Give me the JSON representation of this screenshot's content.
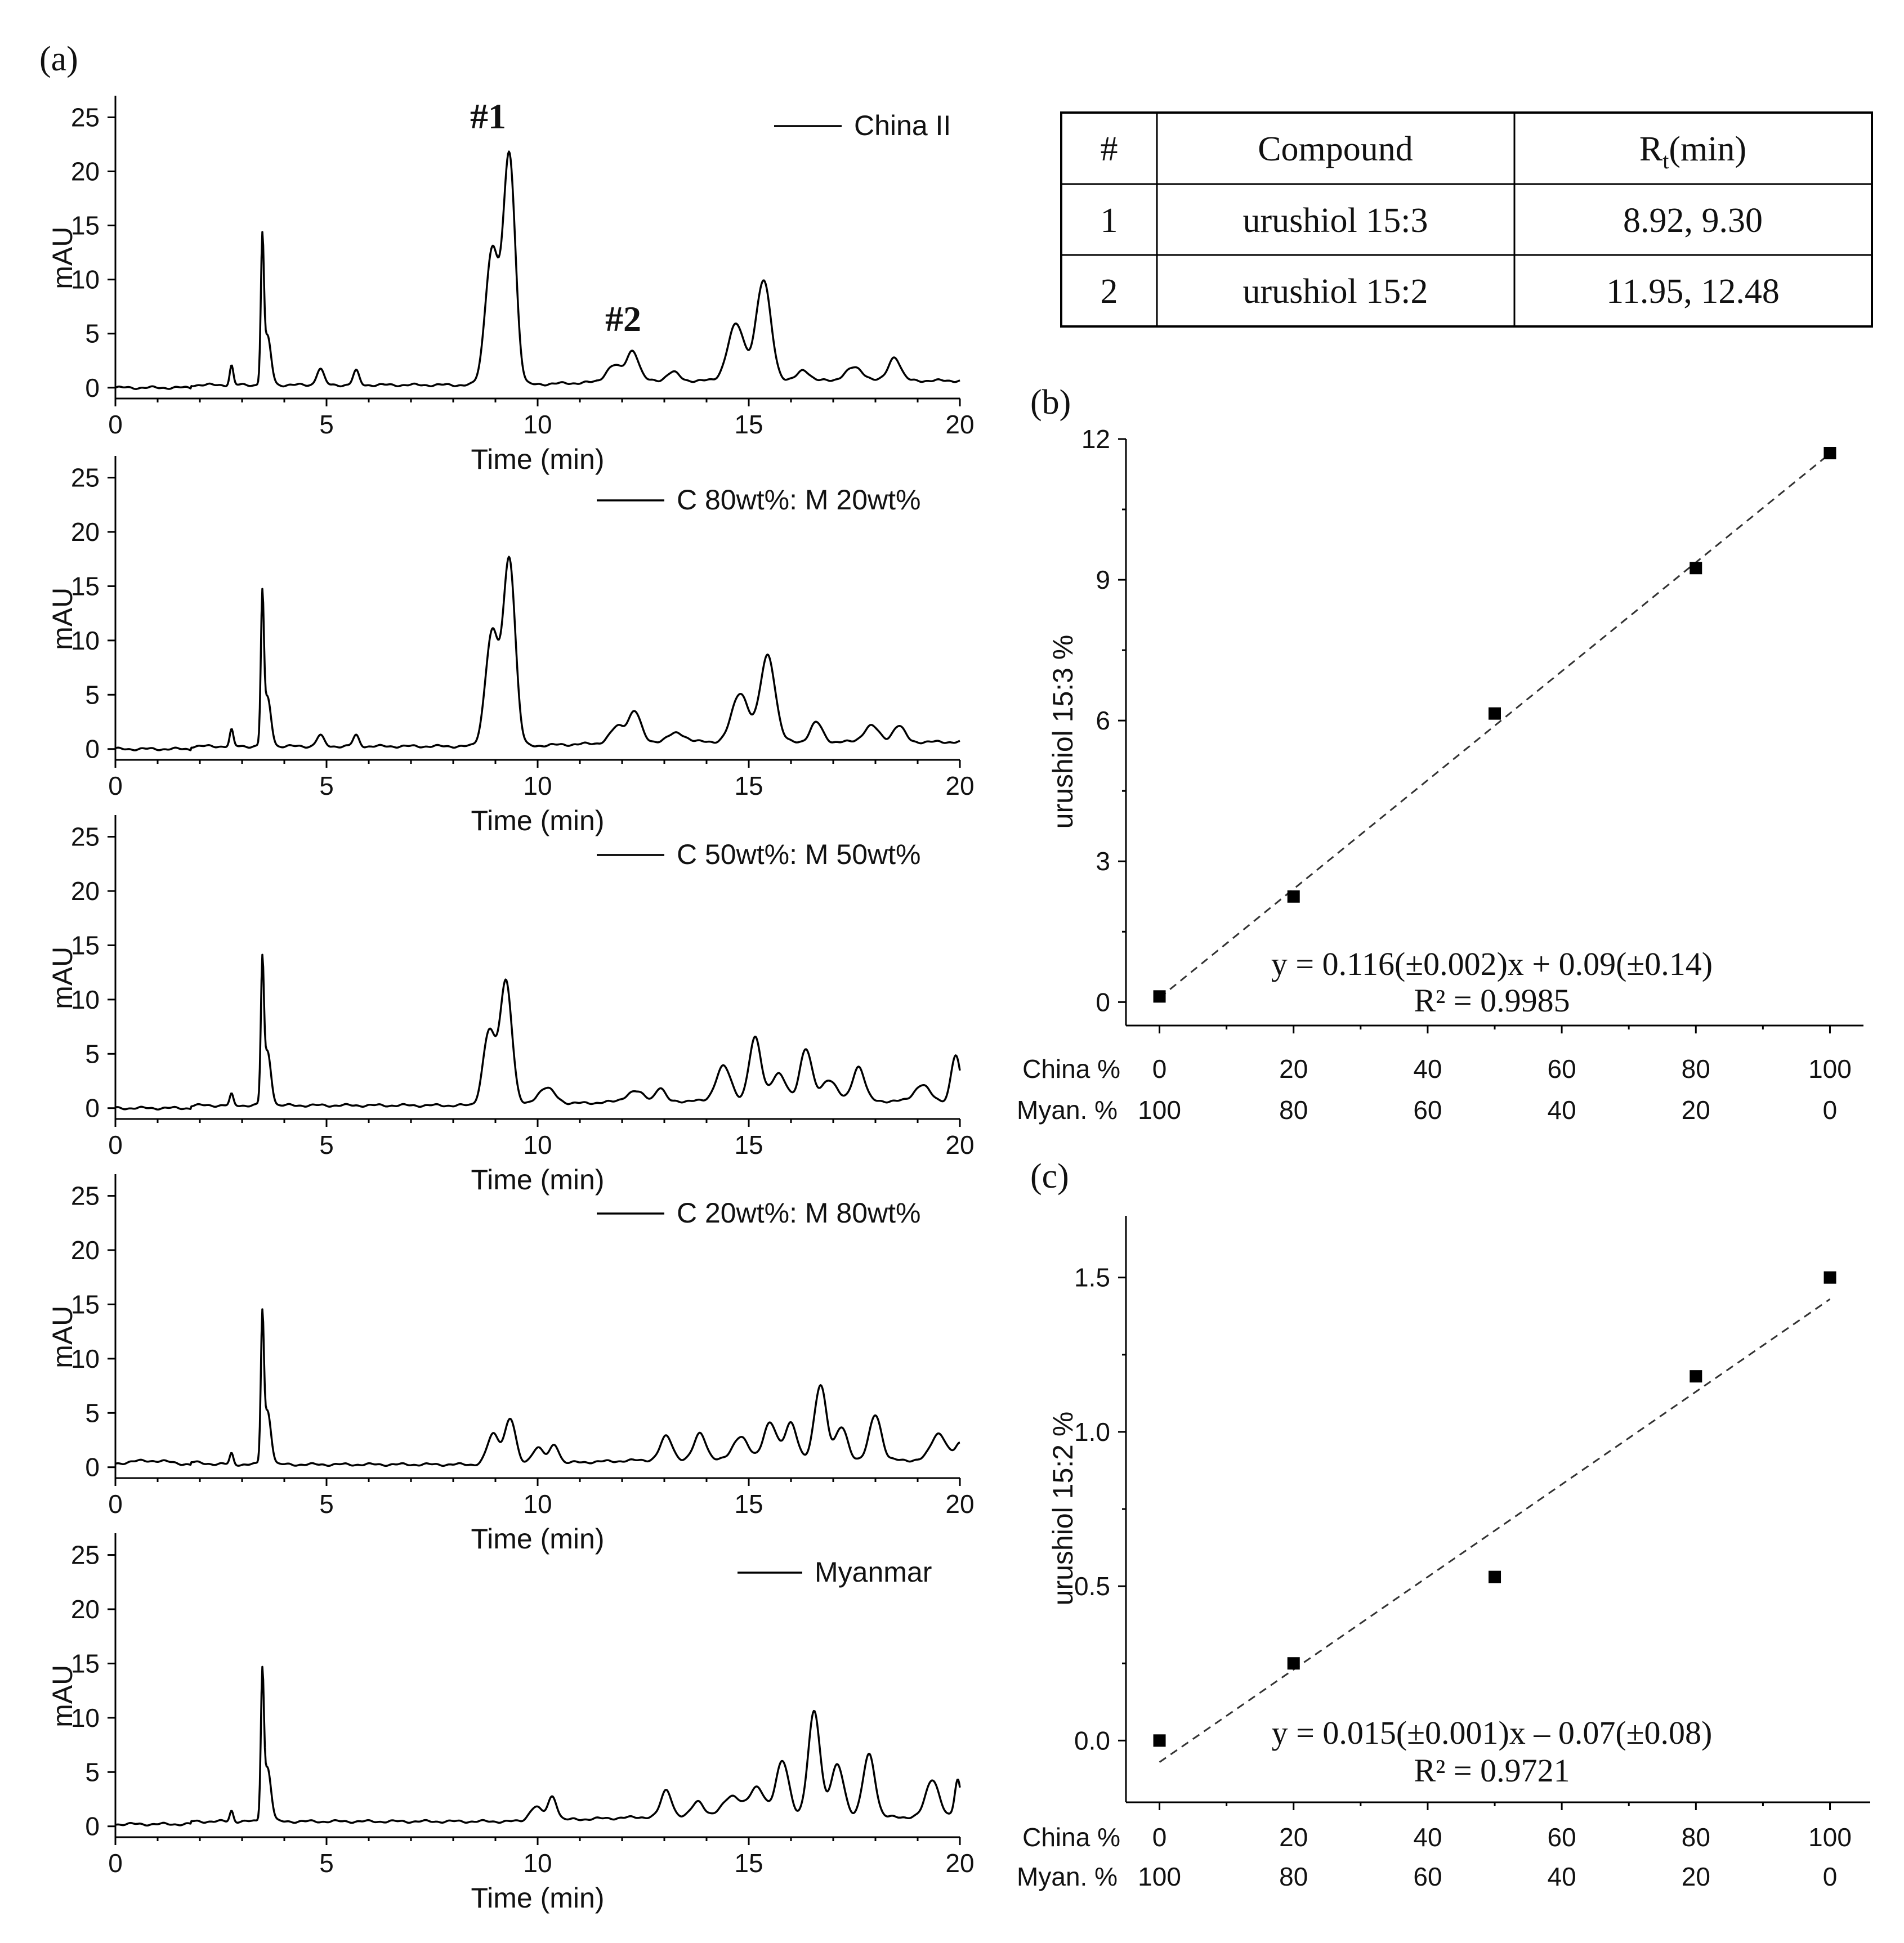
{
  "panel_labels": {
    "a": "(a)",
    "b": "(b)",
    "c": "(c)"
  },
  "peak_labels": [
    "#1",
    "#2"
  ],
  "compound_table": {
    "headers": [
      "#",
      "Compound",
      "R_t(min)"
    ],
    "header_rt_main": "R",
    "header_rt_sub": "t",
    "header_rt_unit": "(min)",
    "rows": [
      [
        "1",
        "urushiol 15:3",
        "8.92, 9.30"
      ],
      [
        "2",
        "urushiol 15:2",
        "11.95, 12.48"
      ]
    ]
  },
  "chart_data": [
    {
      "id": "chromatogram-china",
      "type": "line",
      "legend": "China  II",
      "xlabel": "Time (min)",
      "ylabel": "mAU",
      "xlim": [
        0,
        20
      ],
      "ylim": [
        -1,
        27
      ],
      "xticks": [
        "0",
        "5",
        "10",
        "15",
        "20"
      ],
      "yticks": [
        "0",
        "5",
        "10",
        "15",
        "20",
        "25"
      ],
      "peaks": [
        [
          2.75,
          1.8,
          0.06
        ],
        [
          3.48,
          12.5,
          0.05
        ],
        [
          3.6,
          4.5,
          0.12
        ],
        [
          4.85,
          1.5,
          0.12
        ],
        [
          5.7,
          1.3,
          0.1
        ],
        [
          8.92,
          12.5,
          0.22
        ],
        [
          9.33,
          21.2,
          0.2
        ],
        [
          11.8,
          1.5,
          0.25
        ],
        [
          12.25,
          2.8,
          0.2
        ],
        [
          13.2,
          0.8,
          0.2
        ],
        [
          14.7,
          5.2,
          0.28
        ],
        [
          15.35,
          9.2,
          0.25
        ],
        [
          16.3,
          1.0,
          0.2
        ],
        [
          17.5,
          1.2,
          0.3
        ],
        [
          18.45,
          2.2,
          0.2
        ]
      ]
    },
    {
      "id": "chromatogram-c80-m20",
      "type": "line",
      "legend": "C 80wt%: M 20wt%",
      "xlabel": "Time (min)",
      "ylabel": "mAU",
      "xlim": [
        0,
        20
      ],
      "ylim": [
        -1,
        27
      ],
      "xticks": [
        "0",
        "5",
        "10",
        "15",
        "20"
      ],
      "yticks": [
        "0",
        "5",
        "10",
        "15",
        "20",
        "25"
      ],
      "peaks": [
        [
          2.75,
          1.5,
          0.06
        ],
        [
          3.48,
          12.8,
          0.05
        ],
        [
          3.6,
          4.5,
          0.12
        ],
        [
          4.85,
          1.0,
          0.12
        ],
        [
          5.7,
          1.0,
          0.1
        ],
        [
          8.92,
          10.5,
          0.22
        ],
        [
          9.33,
          17.2,
          0.2
        ],
        [
          11.9,
          1.5,
          0.25
        ],
        [
          12.3,
          2.8,
          0.2
        ],
        [
          13.3,
          0.8,
          0.3
        ],
        [
          14.8,
          4.5,
          0.28
        ],
        [
          15.45,
          8.0,
          0.25
        ],
        [
          16.6,
          1.8,
          0.2
        ],
        [
          17.9,
          1.5,
          0.25
        ],
        [
          18.55,
          1.5,
          0.2
        ]
      ]
    },
    {
      "id": "chromatogram-c50-m50",
      "type": "line",
      "legend": "C 50wt%: M 50wt%",
      "xlabel": "Time (min)",
      "ylabel": "mAU",
      "xlim": [
        0,
        20
      ],
      "ylim": [
        -1,
        27
      ],
      "xticks": [
        "0",
        "5",
        "10",
        "15",
        "20"
      ],
      "yticks": [
        "0",
        "5",
        "10",
        "15",
        "20",
        "25"
      ],
      "peaks": [
        [
          2.75,
          1.0,
          0.06
        ],
        [
          3.48,
          12.0,
          0.05
        ],
        [
          3.6,
          5.0,
          0.12
        ],
        [
          8.85,
          6.8,
          0.2
        ],
        [
          9.25,
          11.5,
          0.2
        ],
        [
          10.2,
          1.5,
          0.3
        ],
        [
          12.3,
          0.9,
          0.3
        ],
        [
          12.9,
          1.2,
          0.15
        ],
        [
          14.4,
          3.2,
          0.25
        ],
        [
          15.15,
          5.8,
          0.2
        ],
        [
          15.7,
          2.5,
          0.25
        ],
        [
          16.35,
          4.8,
          0.2
        ],
        [
          16.9,
          2.0,
          0.25
        ],
        [
          17.6,
          3.2,
          0.2
        ],
        [
          19.1,
          1.5,
          0.25
        ],
        [
          19.9,
          4.2,
          0.15
        ]
      ]
    },
    {
      "id": "chromatogram-c20-m80",
      "type": "line",
      "legend": "C 20wt%: M 80wt%",
      "xlabel": "Time (min)",
      "ylabel": "mAU",
      "xlim": [
        0,
        20
      ],
      "ylim": [
        -1,
        27
      ],
      "xticks": [
        "0",
        "5",
        "10",
        "15",
        "20"
      ],
      "yticks": [
        "0",
        "5",
        "10",
        "15",
        "20",
        "25"
      ],
      "peaks": [
        [
          2.75,
          1.0,
          0.06
        ],
        [
          3.48,
          12.5,
          0.05
        ],
        [
          3.6,
          5.0,
          0.12
        ],
        [
          8.95,
          2.8,
          0.2
        ],
        [
          9.35,
          4.2,
          0.18
        ],
        [
          10.0,
          1.5,
          0.2
        ],
        [
          10.4,
          1.7,
          0.15
        ],
        [
          13.05,
          2.2,
          0.2
        ],
        [
          13.85,
          2.5,
          0.2
        ],
        [
          14.8,
          2.2,
          0.25
        ],
        [
          15.5,
          3.5,
          0.22
        ],
        [
          16.0,
          3.5,
          0.2
        ],
        [
          16.7,
          7.0,
          0.2
        ],
        [
          17.2,
          3.0,
          0.2
        ],
        [
          18.0,
          4.2,
          0.2
        ],
        [
          19.5,
          2.5,
          0.25
        ],
        [
          20.0,
          1.5,
          0.15
        ]
      ]
    },
    {
      "id": "chromatogram-myanmar",
      "type": "line",
      "legend": "Myanmar",
      "xlabel": "Time (min)",
      "ylabel": "mAU",
      "xlim": [
        0,
        20
      ],
      "ylim": [
        -1,
        27
      ],
      "xticks": [
        "0",
        "5",
        "10",
        "15",
        "20"
      ],
      "yticks": [
        "0",
        "5",
        "10",
        "15",
        "20",
        "25"
      ],
      "peaks": [
        [
          2.75,
          1.0,
          0.06
        ],
        [
          3.48,
          12.5,
          0.05
        ],
        [
          3.6,
          5.0,
          0.12
        ],
        [
          9.95,
          1.3,
          0.2
        ],
        [
          10.35,
          2.2,
          0.15
        ],
        [
          13.05,
          2.5,
          0.18
        ],
        [
          13.8,
          1.5,
          0.2
        ],
        [
          14.6,
          2.0,
          0.3
        ],
        [
          15.2,
          2.8,
          0.25
        ],
        [
          15.8,
          5.2,
          0.22
        ],
        [
          16.55,
          9.8,
          0.2
        ],
        [
          17.1,
          4.8,
          0.22
        ],
        [
          17.85,
          5.8,
          0.2
        ],
        [
          19.35,
          3.5,
          0.22
        ],
        [
          19.95,
          3.5,
          0.1
        ]
      ]
    },
    {
      "id": "calibration-urushiol-15-3",
      "type": "scatter",
      "ylabel": "urushiol 15:3 %",
      "x_row_labels": [
        "China %",
        "Myan. %"
      ],
      "x": [
        0,
        20,
        50,
        80,
        100
      ],
      "values": [
        0.12,
        2.25,
        6.15,
        9.25,
        11.7
      ],
      "x_tick_values": [
        0,
        20,
        40,
        60,
        80,
        100
      ],
      "xticks_china": [
        "0",
        "20",
        "40",
        "60",
        "80",
        "100"
      ],
      "xticks_myanmar": [
        "100",
        "80",
        "60",
        "40",
        "20",
        "0"
      ],
      "yticks": [
        "0",
        "3",
        "6",
        "9",
        "12"
      ],
      "xlim": [
        -5,
        105
      ],
      "ylim": [
        -0.5,
        12
      ],
      "fit": {
        "slope": 0.116,
        "intercept": 0.09,
        "x_range": [
          0,
          100
        ]
      },
      "equation": "y = 0.116(±0.002)x + 0.09(±0.14)",
      "r_squared": "R² = 0.9985"
    },
    {
      "id": "calibration-urushiol-15-2",
      "type": "scatter",
      "ylabel": "urushiol 15:2 %",
      "x_row_labels": [
        "China %",
        "Myan. %"
      ],
      "x": [
        0,
        20,
        50,
        80,
        100
      ],
      "values": [
        0.0,
        0.25,
        0.53,
        1.18,
        1.5
      ],
      "x_tick_values": [
        0,
        20,
        40,
        60,
        80,
        100
      ],
      "xticks_china": [
        "0",
        "20",
        "40",
        "60",
        "80",
        "100"
      ],
      "xticks_myanmar": [
        "100",
        "80",
        "60",
        "40",
        "20",
        "0"
      ],
      "yticks": [
        "0.0",
        "0.5",
        "1.0",
        "1.5"
      ],
      "xlim": [
        -5,
        106
      ],
      "ylim": [
        -0.2,
        1.7
      ],
      "fit": {
        "slope": 0.015,
        "intercept": -0.07,
        "x_range": [
          0,
          100
        ]
      },
      "equation": "y = 0.015(±0.001)x – 0.07(±0.08)",
      "r_squared": "R² = 0.9721"
    }
  ]
}
